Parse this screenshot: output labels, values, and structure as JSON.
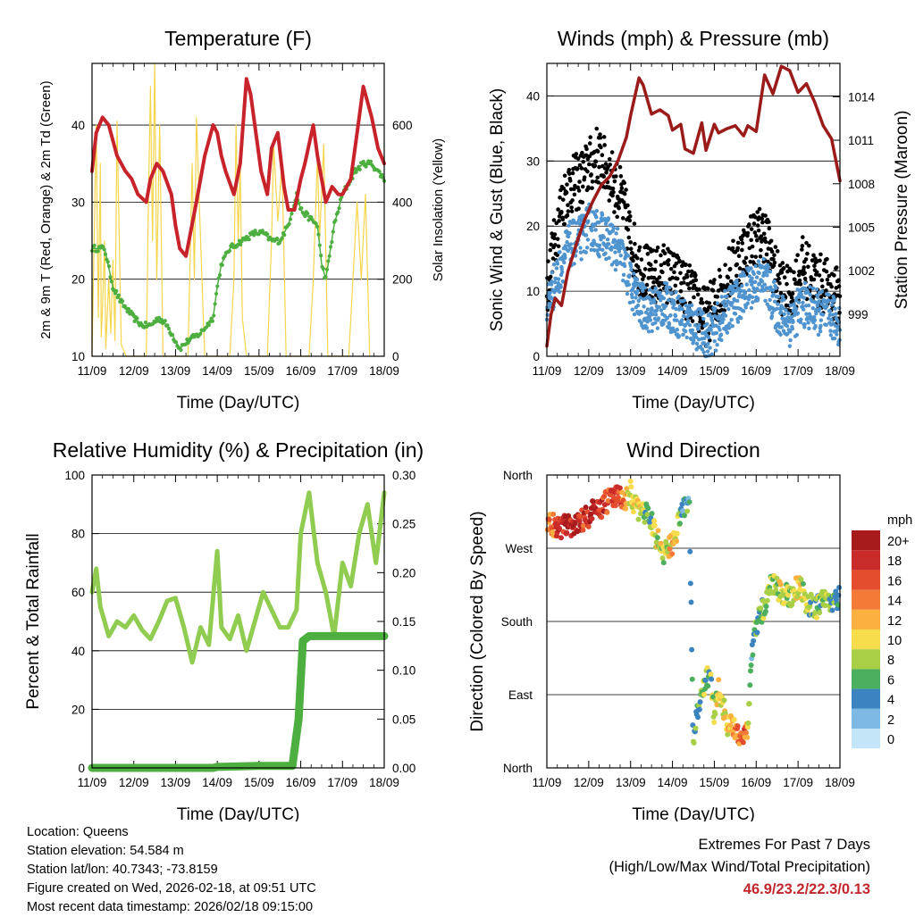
{
  "colors": {
    "red": "#c8232a",
    "green": "#4caf3f",
    "yellow": "#f5d54a",
    "black": "#000000",
    "blue": "#4f94cf",
    "maroon": "#9b1a1a",
    "rh_light": "#8fcc50",
    "precip": "#4caf3f",
    "extreme": "#c1272d"
  },
  "footer": {
    "location": "Location: Queens",
    "elevation": "Station elevation: 54.584 m",
    "latlon": "Station lat/lon: 40.7343; -73.8159",
    "created": "Figure created on Wed, 2026-02-18, at 09:51 UTC",
    "recent": "Most recent data timestamp: 2026/02/18 09:15:00",
    "extremes_title": "Extremes For Past 7 Days",
    "extremes_sub": "(High/Low/Max Wind/Total Precipitation)",
    "extremes_values": "46.9/23.2/22.3/0.13"
  },
  "chart_data": [
    {
      "type": "line",
      "title": "Temperature (F)",
      "xlabel": "Time (Day/UTC)",
      "ylabel": "2m & 9m T (Red, Orange) & 2m Td (Green)",
      "y2label": "Solar Insolation (Yellow)",
      "x_ticks": [
        "11/09",
        "12/09",
        "13/09",
        "14/09",
        "15/09",
        "16/09",
        "17/09",
        "18/09"
      ],
      "xlim": [
        0,
        7
      ],
      "ylim": [
        10,
        48
      ],
      "y_ticks": [
        10,
        20,
        30,
        40
      ],
      "y2lim": [
        0,
        760
      ],
      "y2_ticks": [
        0,
        200,
        400,
        600
      ],
      "series": [
        {
          "name": "2m T",
          "color": "#c8232a",
          "axis": "left",
          "x": [
            0,
            0.1,
            0.25,
            0.4,
            0.6,
            0.8,
            0.95,
            1.1,
            1.3,
            1.4,
            1.55,
            1.7,
            1.9,
            2.0,
            2.1,
            2.25,
            2.5,
            2.7,
            2.9,
            3.0,
            3.1,
            3.2,
            3.4,
            3.55,
            3.7,
            3.8,
            3.95,
            4.05,
            4.2,
            4.3,
            4.45,
            4.6,
            4.7,
            4.85,
            5.0,
            5.1,
            5.3,
            5.4,
            5.6,
            5.75,
            5.9,
            6.0,
            6.2,
            6.4,
            6.5,
            6.7,
            6.85,
            7.0
          ],
          "values": [
            34,
            39,
            41,
            40,
            36,
            34,
            33,
            31,
            30,
            33,
            35,
            34,
            31,
            27,
            24,
            23,
            30,
            36,
            40,
            39,
            36,
            34,
            31,
            35,
            46,
            44,
            38,
            34,
            31,
            37,
            39,
            32,
            29,
            29,
            33,
            35,
            40,
            36,
            30,
            32,
            31,
            31,
            33,
            41,
            45,
            41,
            37,
            35
          ]
        },
        {
          "name": "2m Td",
          "color": "#4caf3f",
          "axis": "left",
          "x": [
            0,
            0.3,
            0.5,
            0.7,
            0.85,
            1.0,
            1.2,
            1.4,
            1.6,
            1.8,
            2.0,
            2.1,
            2.3,
            2.6,
            2.9,
            3.0,
            3.1,
            3.3,
            3.6,
            3.9,
            4.1,
            4.3,
            4.5,
            4.7,
            4.9,
            5.0,
            5.2,
            5.4,
            5.5,
            5.6,
            5.8,
            6.0,
            6.3,
            6.5,
            6.7,
            7.0
          ],
          "values": [
            24,
            24,
            19,
            17,
            16,
            15,
            14,
            14,
            15,
            14,
            12,
            11,
            12,
            13,
            15,
            19,
            22,
            24,
            25,
            26,
            26,
            25,
            25,
            27,
            31,
            29,
            28,
            27,
            22,
            20,
            27,
            31,
            34,
            35,
            35,
            33
          ]
        },
        {
          "name": "Solar Insolation",
          "color": "#f5d54a",
          "axis": "right",
          "x": [
            0,
            0.1,
            0.15,
            0.2,
            0.22,
            0.26,
            0.3,
            0.33,
            0.4,
            0.45,
            0.5,
            0.55,
            0.6,
            0.7,
            0.82,
            1.3,
            1.35,
            1.4,
            1.45,
            1.5,
            1.55,
            1.62,
            1.7,
            2.3,
            2.4,
            2.45,
            2.5,
            2.6,
            2.7,
            3.3,
            3.4,
            3.45,
            3.5,
            3.55,
            3.6,
            3.7,
            4.2,
            4.3,
            4.35,
            4.45,
            4.55,
            4.65,
            5.2,
            5.3,
            5.4,
            5.45,
            5.55,
            5.65,
            6.15,
            6.25,
            6.35,
            6.45,
            6.55,
            6.65
          ],
          "values": [
            0,
            600,
            100,
            500,
            50,
            150,
            300,
            20,
            200,
            60,
            250,
            40,
            610,
            30,
            0,
            0,
            400,
            700,
            300,
            760,
            200,
            600,
            0,
            0,
            500,
            200,
            620,
            300,
            0,
            0,
            200,
            600,
            300,
            500,
            100,
            0,
            0,
            300,
            550,
            350,
            500,
            0,
            0,
            200,
            520,
            300,
            550,
            0,
            0,
            200,
            400,
            200,
            420,
            0
          ]
        }
      ]
    },
    {
      "type": "scatter",
      "title": "Winds (mph) & Pressure (mb)",
      "xlabel": "Time (Day/UTC)",
      "ylabel": "Sonic Wind & Gust (Blue, Black)",
      "y2label": "Station Pressure (Maroon)",
      "x_ticks": [
        "11/09",
        "12/09",
        "13/09",
        "14/09",
        "15/09",
        "16/09",
        "17/09",
        "18/09"
      ],
      "xlim": [
        0,
        7
      ],
      "ylim": [
        0,
        45
      ],
      "y_ticks": [
        0,
        10,
        20,
        30,
        40
      ],
      "y2lim": [
        996.1,
        1016.3
      ],
      "y2_ticks": [
        999,
        1002,
        1005,
        1008,
        1011,
        1014
      ],
      "series": [
        {
          "name": "Gust",
          "color": "#000000",
          "axis": "left",
          "x": [
            0,
            0.3,
            0.5,
            0.8,
            1.0,
            1.2,
            1.5,
            1.8,
            2.0,
            2.2,
            2.5,
            2.8,
            3.2,
            3.5,
            3.8,
            4.0,
            4.3,
            4.6,
            4.9,
            5.2,
            5.5,
            5.8,
            6.1,
            6.4,
            6.8,
            7.0
          ],
          "values": [
            10,
            22,
            26,
            27,
            29,
            31,
            28,
            24,
            18,
            14,
            12,
            13,
            11,
            9,
            6,
            8,
            12,
            15,
            18,
            19,
            12,
            9,
            14,
            12,
            10,
            9
          ]
        },
        {
          "name": "Wind",
          "color": "#4f94cf",
          "axis": "left",
          "x": [
            0,
            0.3,
            0.5,
            0.8,
            1.0,
            1.2,
            1.5,
            1.8,
            2.0,
            2.2,
            2.5,
            2.8,
            3.2,
            3.5,
            3.8,
            4.0,
            4.3,
            4.6,
            4.9,
            5.2,
            5.5,
            5.8,
            6.1,
            6.4,
            6.8,
            7.0
          ],
          "values": [
            8,
            13,
            17,
            18,
            20,
            19,
            18,
            15,
            11,
            8,
            7,
            8,
            6,
            5,
            3,
            4,
            7,
            9,
            11,
            12,
            7,
            5,
            8,
            7,
            6,
            5
          ]
        },
        {
          "name": "Station Pressure",
          "color": "#9b1a1a",
          "axis": "right",
          "x": [
            0,
            0.1,
            0.2,
            0.35,
            0.5,
            0.7,
            0.9,
            1.1,
            1.3,
            1.5,
            1.7,
            1.9,
            2.0,
            2.2,
            2.3,
            2.5,
            2.7,
            2.9,
            3.0,
            3.2,
            3.3,
            3.5,
            3.7,
            3.8,
            4.0,
            4.1,
            4.3,
            4.5,
            4.7,
            4.8,
            5.0,
            5.2,
            5.4,
            5.6,
            5.8,
            6.0,
            6.2,
            6.4,
            6.6,
            6.8,
            7.0
          ],
          "values": [
            996.8,
            999.0,
            1000.1,
            999.6,
            1001.9,
            1003.8,
            1005.5,
            1006.8,
            1007.9,
            1008.5,
            1009.6,
            1011.2,
            1012.7,
            1015.3,
            1014.8,
            1012.8,
            1013.1,
            1012.7,
            1011.7,
            1012.1,
            1010.4,
            1010.1,
            1012.2,
            1010.3,
            1012.1,
            1011.5,
            1011.8,
            1012.0,
            1011.3,
            1012.0,
            1011.6,
            1015.5,
            1014.2,
            1016.1,
            1015.8,
            1014.3,
            1014.9,
            1013.6,
            1012.0,
            1011.1,
            1008.2
          ]
        }
      ]
    },
    {
      "type": "line",
      "title": "Relative Humidity (%) & Precipitation (in)",
      "xlabel": "Time (Day/UTC)",
      "ylabel": "Percent & Total Rainfall",
      "x_ticks": [
        "11/09",
        "12/09",
        "13/09",
        "14/09",
        "15/09",
        "16/09",
        "17/09",
        "18/09"
      ],
      "xlim": [
        0,
        7
      ],
      "ylim": [
        0,
        100
      ],
      "y_ticks": [
        0,
        20,
        40,
        60,
        80,
        100
      ],
      "y2lim": [
        0,
        0.3
      ],
      "y2_ticks": [
        "0.00",
        "0.05",
        "0.10",
        "0.15",
        "0.20",
        "0.25",
        "0.30"
      ],
      "series": [
        {
          "name": "Relative Humidity",
          "color": "#8fcc50",
          "axis": "left",
          "x": [
            0,
            0.1,
            0.2,
            0.4,
            0.6,
            0.8,
            1.0,
            1.2,
            1.4,
            1.6,
            1.8,
            2.0,
            2.2,
            2.4,
            2.6,
            2.8,
            3.0,
            3.1,
            3.3,
            3.5,
            3.7,
            3.9,
            4.1,
            4.3,
            4.5,
            4.7,
            4.9,
            5.0,
            5.2,
            5.4,
            5.6,
            5.8,
            6.0,
            6.2,
            6.4,
            6.6,
            6.8,
            7.0
          ],
          "values": [
            60,
            68,
            55,
            45,
            50,
            48,
            52,
            47,
            44,
            50,
            57,
            58,
            48,
            36,
            48,
            42,
            74,
            48,
            44,
            52,
            40,
            50,
            60,
            54,
            48,
            48,
            54,
            80,
            94,
            70,
            60,
            45,
            70,
            62,
            80,
            90,
            70,
            94
          ]
        },
        {
          "name": "Total Precipitation",
          "color": "#4caf3f",
          "axis": "right",
          "x": [
            0,
            1,
            2,
            2.9,
            3.0,
            4.0,
            4.8,
            4.95,
            5.05,
            5.2,
            5.5,
            6.0,
            7.0
          ],
          "values": [
            0,
            0,
            0,
            0,
            0.001,
            0.002,
            0.002,
            0.05,
            0.13,
            0.135,
            0.135,
            0.135,
            0.135
          ]
        }
      ]
    },
    {
      "type": "scatter",
      "title": "Wind Direction",
      "xlabel": "Time (Day/UTC)",
      "ylabel": "Direction (Colored By Speed)",
      "x_ticks": [
        "11/09",
        "12/09",
        "13/09",
        "14/09",
        "15/09",
        "16/09",
        "17/09",
        "18/09"
      ],
      "xlim": [
        0,
        7
      ],
      "ylim": [
        0,
        360
      ],
      "y_ticks": [
        "North",
        "East",
        "South",
        "West",
        "North"
      ],
      "legend_title": "mph",
      "legend": [
        "20+",
        "18",
        "16",
        "14",
        "12",
        "10",
        "8",
        "6",
        "4",
        "2",
        "0"
      ],
      "legend_colors": [
        "#a71b1d",
        "#c92a2a",
        "#e44d2e",
        "#f47a38",
        "#fbb040",
        "#f7dc4c",
        "#a8cf45",
        "#4caf5d",
        "#3b84c0",
        "#7db9e3",
        "#c4e4f7"
      ],
      "points": [
        {
          "x": 0.1,
          "dir": 300,
          "speed": 14
        },
        {
          "x": 0.3,
          "dir": 295,
          "speed": 18
        },
        {
          "x": 0.5,
          "dir": 298,
          "speed": 20
        },
        {
          "x": 0.7,
          "dir": 300,
          "speed": 19
        },
        {
          "x": 0.9,
          "dir": 305,
          "speed": 17
        },
        {
          "x": 1.1,
          "dir": 315,
          "speed": 20
        },
        {
          "x": 1.3,
          "dir": 320,
          "speed": 18
        },
        {
          "x": 1.5,
          "dir": 330,
          "speed": 16
        },
        {
          "x": 1.7,
          "dir": 335,
          "speed": 18
        },
        {
          "x": 1.9,
          "dir": 330,
          "speed": 12
        },
        {
          "x": 2.0,
          "dir": 340,
          "speed": 8
        },
        {
          "x": 2.1,
          "dir": 320,
          "speed": 10
        },
        {
          "x": 2.3,
          "dir": 315,
          "speed": 8
        },
        {
          "x": 2.5,
          "dir": 305,
          "speed": 6
        },
        {
          "x": 2.6,
          "dir": 285,
          "speed": 10
        },
        {
          "x": 2.8,
          "dir": 265,
          "speed": 8
        },
        {
          "x": 3.0,
          "dir": 275,
          "speed": 12
        },
        {
          "x": 3.2,
          "dir": 310,
          "speed": 6
        },
        {
          "x": 3.4,
          "dir": 335,
          "speed": 4
        },
        {
          "x": 3.5,
          "dir": 25,
          "speed": 6
        },
        {
          "x": 3.6,
          "dir": 70,
          "speed": 4
        },
        {
          "x": 3.7,
          "dir": 90,
          "speed": 8
        },
        {
          "x": 3.9,
          "dir": 120,
          "speed": 6
        },
        {
          "x": 4.0,
          "dir": 60,
          "speed": 8
        },
        {
          "x": 4.1,
          "dir": 100,
          "speed": 10
        },
        {
          "x": 4.3,
          "dir": 55,
          "speed": 10
        },
        {
          "x": 4.5,
          "dir": 45,
          "speed": 14
        },
        {
          "x": 4.7,
          "dir": 40,
          "speed": 16
        },
        {
          "x": 4.8,
          "dir": 50,
          "speed": 10
        },
        {
          "x": 4.9,
          "dir": 140,
          "speed": 2
        },
        {
          "x": 5.0,
          "dir": 175,
          "speed": 6
        },
        {
          "x": 5.2,
          "dir": 200,
          "speed": 8
        },
        {
          "x": 5.4,
          "dir": 230,
          "speed": 8
        },
        {
          "x": 5.6,
          "dir": 215,
          "speed": 10
        },
        {
          "x": 5.8,
          "dir": 210,
          "speed": 6
        },
        {
          "x": 6.0,
          "dir": 225,
          "speed": 10
        },
        {
          "x": 6.2,
          "dir": 205,
          "speed": 8
        },
        {
          "x": 6.4,
          "dir": 195,
          "speed": 6
        },
        {
          "x": 6.6,
          "dir": 205,
          "speed": 8
        },
        {
          "x": 6.8,
          "dir": 200,
          "speed": 6
        },
        {
          "x": 6.95,
          "dir": 210,
          "speed": 6
        }
      ]
    }
  ]
}
